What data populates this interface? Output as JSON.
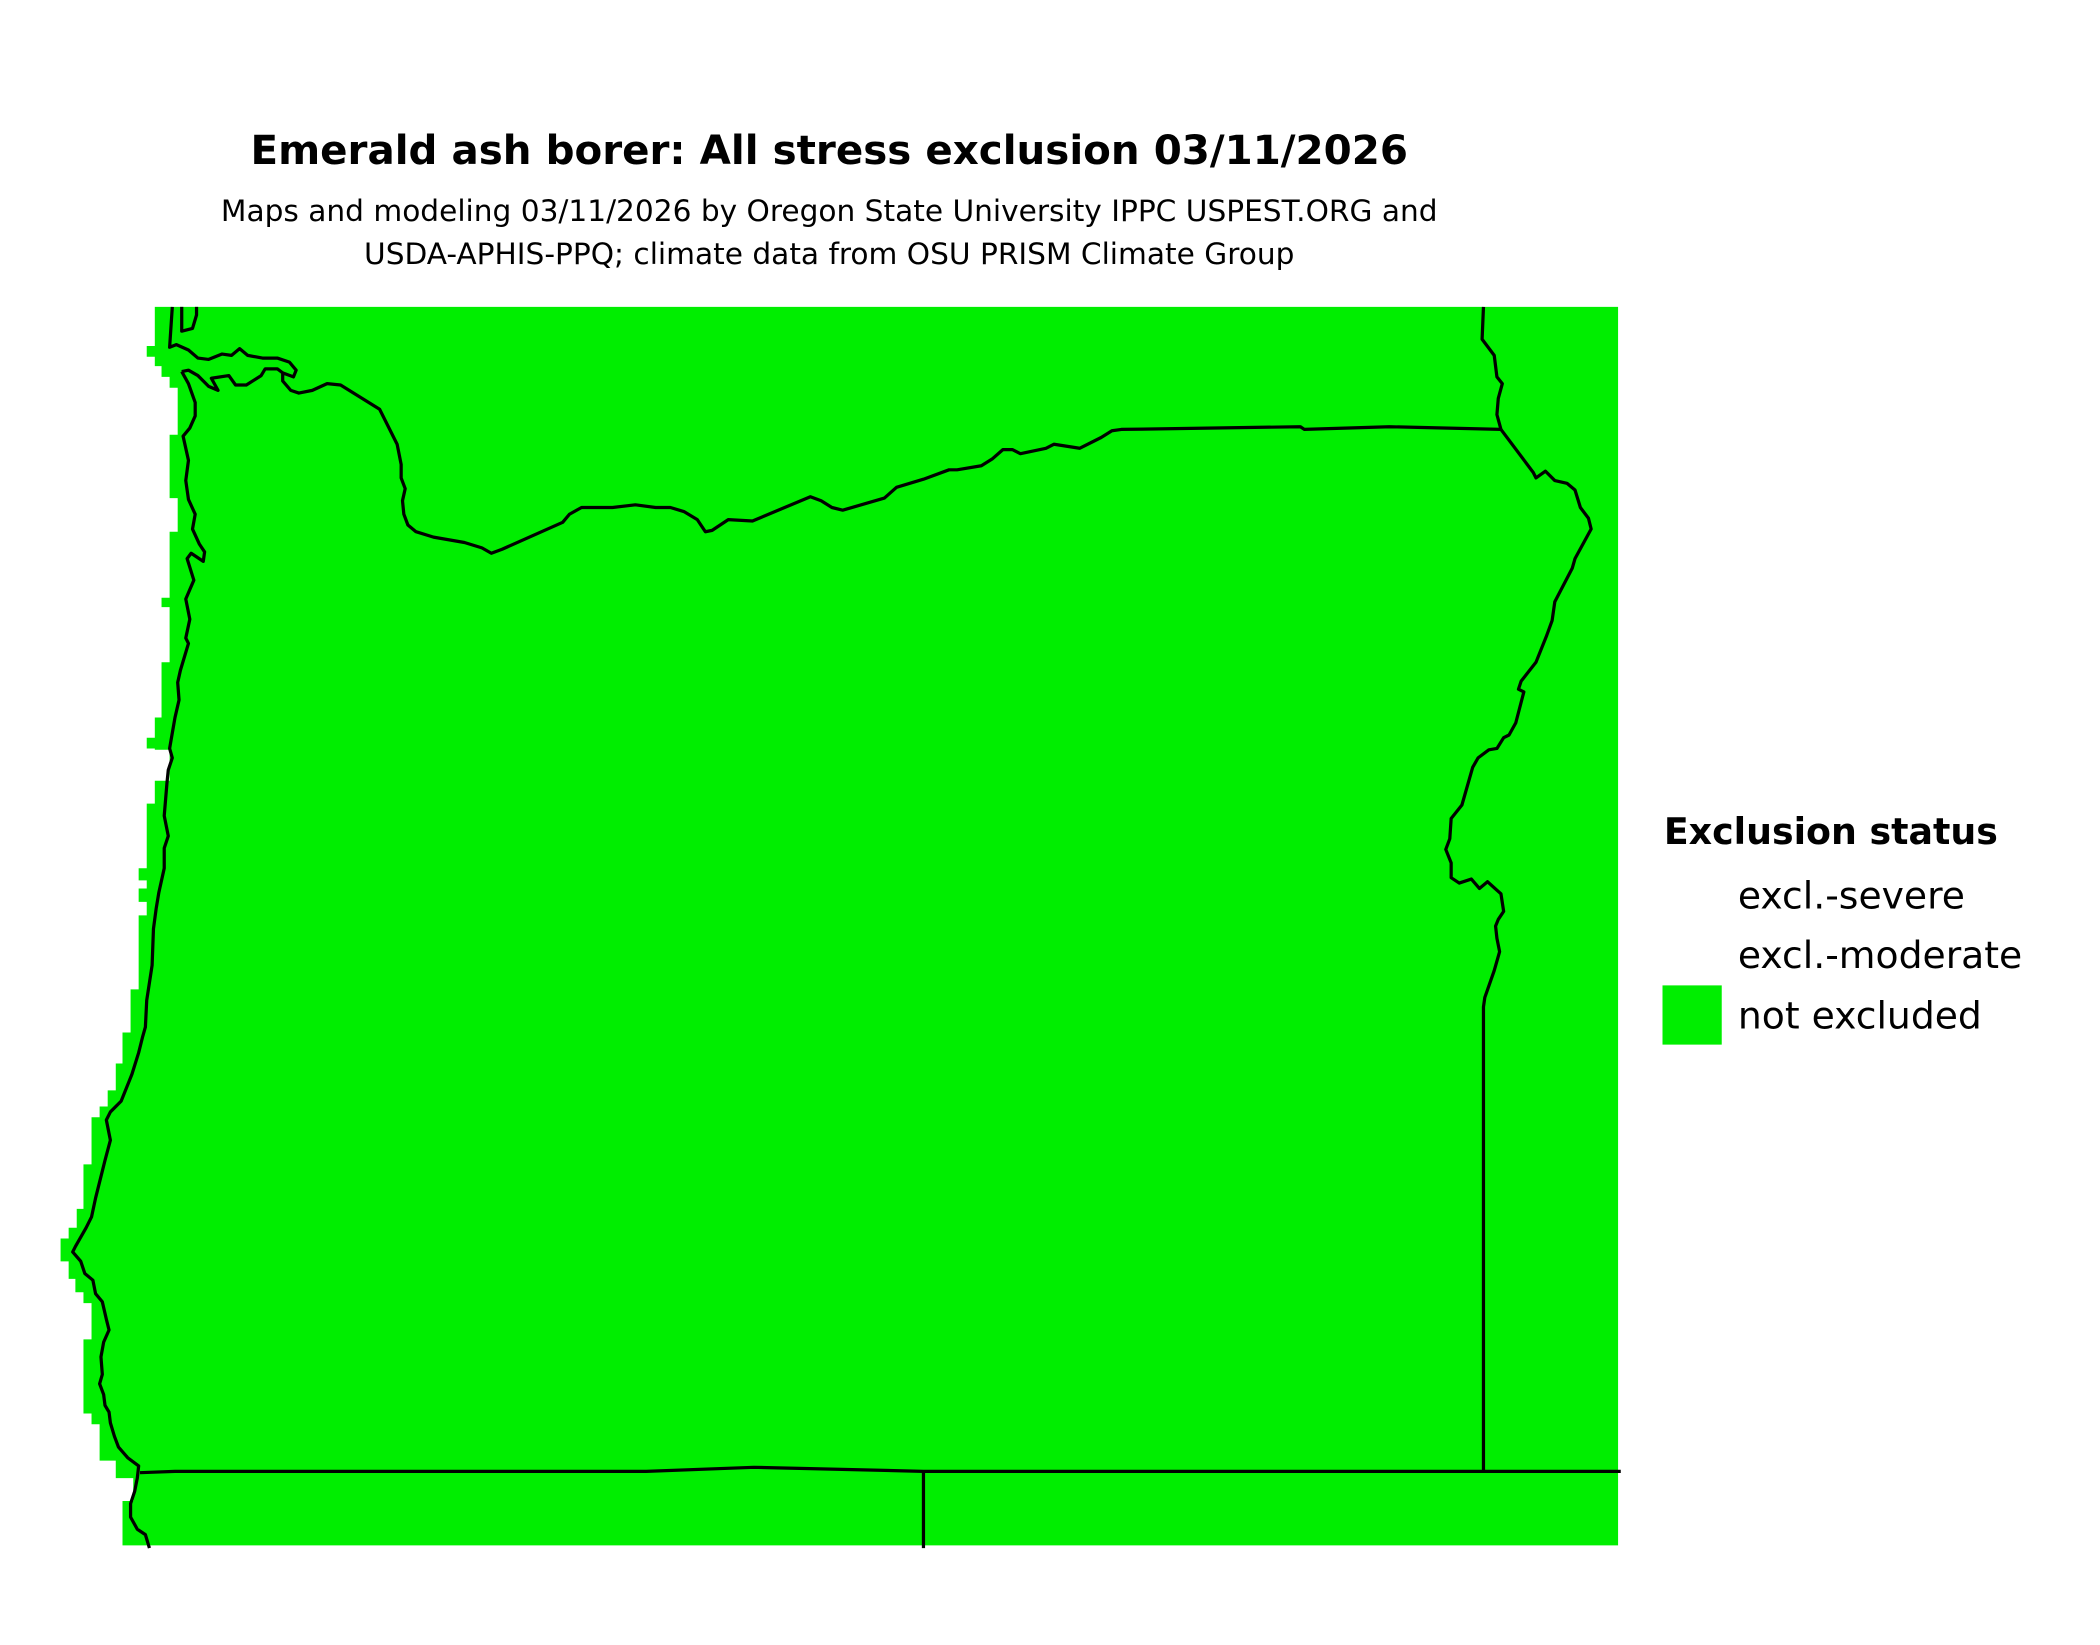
{
  "title": "Emerald ash borer: All stress exclusion 03/11/2026",
  "subtitle_lines": [
    "Maps and modeling 03/11/2026 by Oregon State University IPPC USPEST.ORG and",
    "USDA-APHIS-PPQ; climate data from OSU PRISM Climate Group"
  ],
  "legend": {
    "title": "Exclusion status",
    "items": [
      {
        "label": "excl.-severe",
        "color": null
      },
      {
        "label": "excl.-moderate",
        "color": null
      },
      {
        "label": "not excluded",
        "color": "#00ee00"
      }
    ]
  },
  "map": {
    "fill_color": "#00ee00",
    "border_color": "#000000",
    "status_shown": "not excluded"
  }
}
